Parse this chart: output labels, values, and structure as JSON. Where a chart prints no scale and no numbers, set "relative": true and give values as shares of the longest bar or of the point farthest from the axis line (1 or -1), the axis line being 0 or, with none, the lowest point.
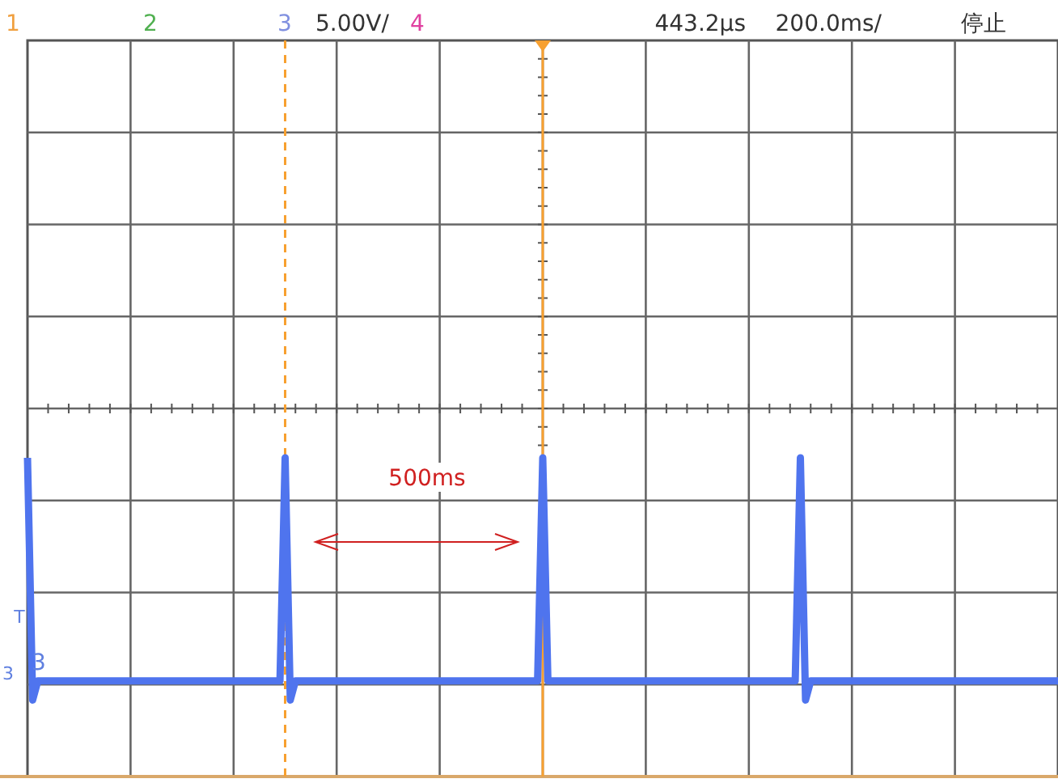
{
  "chart_data": {
    "type": "line",
    "relative": true,
    "grid": true,
    "marker": "none",
    "line_style": "solid",
    "categories": [
      null,
      null,
      null,
      null,
      null,
      null,
      null,
      null,
      null,
      null,
      null,
      null,
      null,
      null,
      null,
      null,
      null,
      null,
      null,
      null,
      null,
      null,
      null,
      null,
      null,
      null,
      null,
      null,
      null,
      null,
      null,
      null,
      null,
      null,
      null,
      null,
      null,
      null,
      null,
      null,
      null,
      null,
      null,
      null,
      null,
      null,
      null,
      null,
      null,
      null,
      null,
      null,
      null,
      null,
      null,
      null,
      null,
      null,
      null,
      null,
      null,
      null,
      null,
      null,
      null,
      null,
      null,
      null,
      null,
      null,
      null,
      null,
      null,
      null,
      null,
      null,
      null,
      null,
      null,
      null,
      null,
      null,
      null,
      null,
      null,
      null,
      null,
      null,
      null,
      null,
      null,
      null,
      null,
      null,
      null,
      null,
      null,
      null,
      null,
      null,
      null,
      null,
      null,
      null,
      null,
      null,
      null,
      null,
      null,
      null,
      null,
      null,
      null,
      null,
      null,
      null,
      null,
      null,
      null,
      null,
      null,
      null,
      null,
      null,
      null,
      null,
      null,
      null,
      null,
      null,
      null,
      null,
      null,
      null,
      null,
      null,
      null,
      null,
      null,
      null,
      null,
      null,
      null,
      null,
      null,
      null,
      null,
      null,
      null,
      null,
      null,
      null,
      null,
      null,
      null,
      null,
      null,
      null,
      null,
      null,
      null,
      null,
      null,
      null,
      null,
      null,
      null,
      null,
      null,
      null,
      null,
      null,
      null,
      null,
      null,
      null,
      null,
      null,
      null,
      null,
      null,
      null,
      null,
      null,
      null,
      null,
      null,
      null,
      null,
      null,
      null,
      null,
      null,
      null,
      null,
      null,
      null,
      null,
      null,
      null,
      null
    ],
    "series": [
      {
        "color": "#4f74ee",
        "values": [
          1,
          0.24,
          0.3,
          0.3,
          0.3,
          0.3,
          0.3,
          0.3,
          0.3,
          0.3,
          0.3,
          0.3,
          0.3,
          0.3,
          0.3,
          0.3,
          0.3,
          0.3,
          0.3,
          0.3,
          0.3,
          0.3,
          0.3,
          0.3,
          0.3,
          0.3,
          0.3,
          0.3,
          0.3,
          0.3,
          0.3,
          0.3,
          0.3,
          0.3,
          0.3,
          0.3,
          0.3,
          0.3,
          0.3,
          0.3,
          0.3,
          0.3,
          0.3,
          0.3,
          0.3,
          0.3,
          0.3,
          0.3,
          0.3,
          0.3,
          1,
          0.24,
          0.3,
          0.3,
          0.3,
          0.3,
          0.3,
          0.3,
          0.3,
          0.3,
          0.3,
          0.3,
          0.3,
          0.3,
          0.3,
          0.3,
          0.3,
          0.3,
          0.3,
          0.3,
          0.3,
          0.3,
          0.3,
          0.3,
          0.3,
          0.3,
          0.3,
          0.3,
          0.3,
          0.3,
          0.3,
          0.3,
          0.3,
          0.3,
          0.3,
          0.3,
          0.3,
          0.3,
          0.3,
          0.3,
          0.3,
          0.3,
          0.3,
          0.3,
          0.3,
          0.3,
          0.3,
          0.3,
          0.3,
          0.3,
          1,
          0.3,
          0.3,
          0.3,
          0.3,
          0.3,
          0.3,
          0.3,
          0.3,
          0.3,
          0.3,
          0.3,
          0.3,
          0.3,
          0.3,
          0.3,
          0.3,
          0.3,
          0.3,
          0.3,
          0.3,
          0.3,
          0.3,
          0.3,
          0.3,
          0.3,
          0.3,
          0.3,
          0.3,
          0.3,
          0.3,
          0.3,
          0.3,
          0.3,
          0.3,
          0.3,
          0.3,
          0.3,
          0.3,
          0.3,
          0.3,
          0.3,
          0.3,
          0.3,
          0.3,
          0.3,
          0.3,
          0.3,
          0.3,
          0.3,
          1,
          0.24,
          0.3,
          0.3,
          0.3,
          0.3,
          0.3,
          0.3,
          0.3,
          0.3,
          0.3,
          0.3,
          0.3,
          0.3,
          0.3,
          0.3,
          0.3,
          0.3,
          0.3,
          0.3,
          0.3,
          0.3,
          0.3,
          0.3,
          0.3,
          0.3,
          0.3,
          0.3,
          0.3,
          0.3,
          0.3,
          0.3,
          0.3,
          0.3,
          0.3,
          0.3,
          0.3,
          0.3,
          0.3,
          0.3,
          0.3,
          0.3,
          0.3,
          0.3,
          0.3,
          0.3,
          0.3,
          0.3,
          0.3,
          0.3,
          0.3
        ]
      }
    ],
    "annotations": [
      "1",
      "2",
      "3",
      "5.00V/",
      "4",
      "443.2µs",
      "200.0ms/",
      "停止",
      "500ms",
      "T",
      "3",
      "3"
    ]
  }
}
